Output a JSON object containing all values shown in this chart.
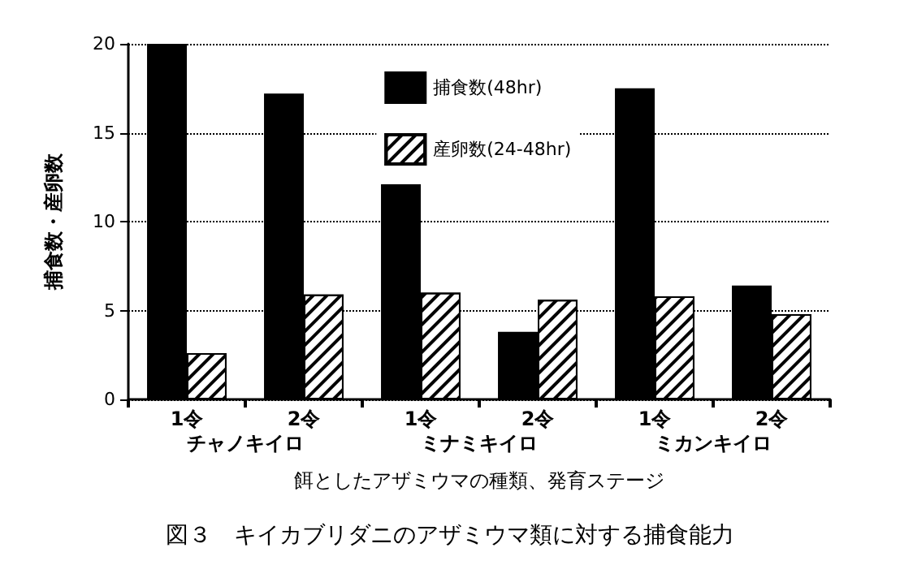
{
  "chart_data": {
    "type": "bar",
    "title": "図３　キイカブリダニのアザミウマ類に対する捕食能力",
    "categories": [
      "1令",
      "2令",
      "1令",
      "2令",
      "1令",
      "2令"
    ],
    "series": [
      {
        "name": "捕食数(48hr)",
        "color": "#000000",
        "values": [
          20,
          17.2,
          12.1,
          3.8,
          17.5,
          6.4
        ]
      },
      {
        "name": "産卵数(24-48hr)",
        "color": "#ffffff",
        "values": [
          2.6,
          5.9,
          6.0,
          5.6,
          5.8,
          4.8
        ]
      }
    ],
    "xlabel": "餌としたアザミウマの種類、発育ステージ",
    "ylabel": "捕食数・産卵数",
    "annotations": [
      "チャノキイロ",
      "ミナミキイロ",
      "ミカンキイロ"
    ],
    "ylim": [
      0,
      20
    ],
    "yticks": [
      0,
      5,
      10,
      15,
      20
    ],
    "grid": "y",
    "legend": "top right"
  }
}
